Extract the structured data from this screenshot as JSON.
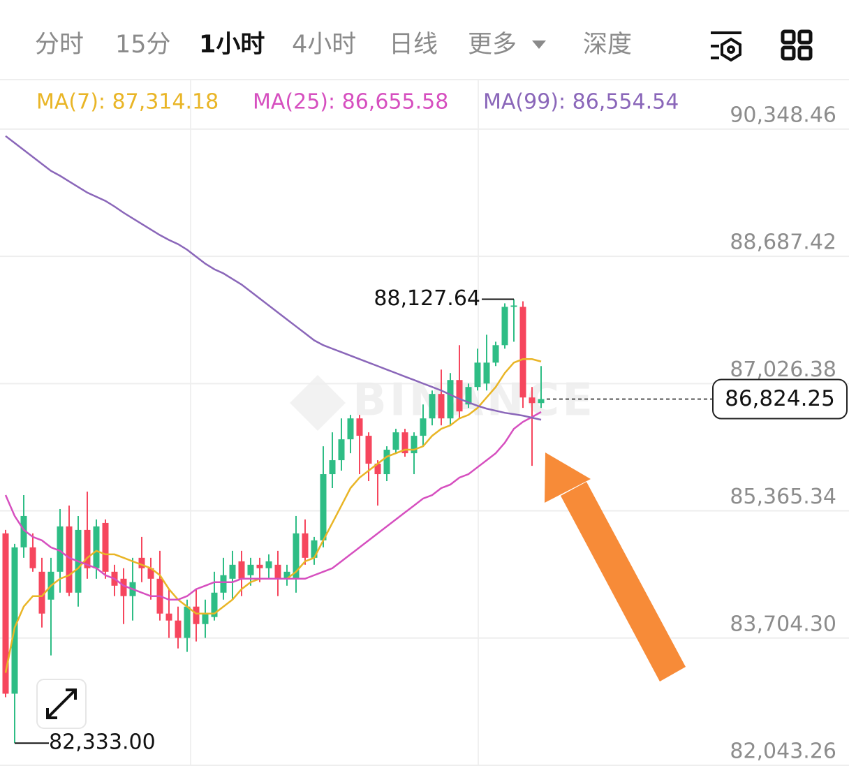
{
  "tabs": [
    "分时",
    "15分",
    "1小时",
    "4小时",
    "日线",
    "更多",
    "深度"
  ],
  "active_tab": "1小时",
  "chart_data": {
    "type": "candlestick",
    "watermark": "BINANCE",
    "up_color": "#2ebd85",
    "down_color": "#f6465d",
    "ylim": [
      82043.26,
      90985.6
    ],
    "yticks": [
      {
        "value": 90348.46,
        "label": "90,348.46"
      },
      {
        "value": 88687.42,
        "label": "88,687.42"
      },
      {
        "value": 87026.38,
        "label": "87,026.38"
      },
      {
        "value": 85365.34,
        "label": "85,365.34"
      },
      {
        "value": 83704.3,
        "label": "83,704.30"
      },
      {
        "value": 82043.26,
        "label": "82,043.26"
      }
    ],
    "grid": true,
    "open": [
      85071,
      82978,
      84888,
      84888,
      84570,
      84206,
      84570,
      85162,
      84297,
      85116,
      84616,
      85207,
      84570,
      84479,
      84252,
      84752,
      84616,
      84479,
      84024,
      83933,
      83706,
      84115,
      83887,
      83979,
      84297,
      84479,
      84706,
      84525,
      84661,
      84616,
      84661,
      84479,
      84479,
      85071,
      84752,
      84980,
      85844,
      86026,
      86299,
      86572,
      86345,
      85981,
      85844,
      86163,
      86390,
      86117,
      86345,
      86572,
      86891,
      86572,
      87073,
      86754,
      86982,
      87027,
      87300,
      87528,
      88028,
      88028,
      86845,
      86772
    ],
    "close": [
      82978,
      84888,
      85298,
      84616,
      84024,
      84570,
      85162,
      84297,
      85116,
      84616,
      85162,
      84570,
      84388,
      84252,
      84434,
      84616,
      84479,
      84024,
      83933,
      83706,
      84115,
      83887,
      84024,
      84297,
      84525,
      84661,
      84479,
      84661,
      84616,
      84706,
      84479,
      84570,
      85071,
      84752,
      84980,
      85844,
      86026,
      86299,
      86572,
      86345,
      85981,
      85844,
      86163,
      86390,
      86117,
      86345,
      86572,
      86891,
      86572,
      87073,
      86663,
      86982,
      87300,
      87300,
      87528,
      88028,
      88046,
      86845,
      86772,
      86824.25
    ],
    "high": [
      85116,
      84934,
      85571,
      85071,
      84752,
      84752,
      85389,
      85434,
      85298,
      85616,
      85253,
      85253,
      84661,
      84616,
      84752,
      85025,
      84752,
      84843,
      84343,
      84115,
      84206,
      84343,
      84206,
      84570,
      84752,
      84843,
      84843,
      84752,
      84752,
      84797,
      84843,
      84661,
      85298,
      85253,
      85025,
      86208,
      86390,
      86572,
      86618,
      86618,
      86390,
      86026,
      86208,
      86436,
      86436,
      86390,
      86754,
      86936,
      87209,
      87164,
      87528,
      87027,
      87482,
      87664,
      87573,
      88074,
      88127.64,
      88101,
      86982,
      87255
    ],
    "low": [
      82932,
      82333,
      84752,
      84570,
      83842,
      83478,
      84297,
      84252,
      84115,
      84479,
      84479,
      84479,
      84252,
      83887,
      83933,
      84434,
      84206,
      83933,
      83706,
      83569,
      83524,
      83660,
      83706,
      83933,
      84206,
      84206,
      84252,
      84388,
      84434,
      84479,
      84252,
      84388,
      84297,
      84661,
      84661,
      84888,
      85662,
      85890,
      86117,
      85844,
      85753,
      85434,
      85753,
      86117,
      86072,
      85844,
      86208,
      86481,
      86481,
      86481,
      86572,
      86709,
      86936,
      86936,
      87255,
      87482,
      87573,
      86709,
      85953,
      86709
    ],
    "series": [
      {
        "name": "MA(7): 87,314.18",
        "color": "#e9b526",
        "values": [
          83251,
          83842,
          84115,
          84252,
          84252,
          84388,
          84479,
          84525,
          84616,
          84752,
          84843,
          84797,
          84797,
          84752,
          84706,
          84661,
          84616,
          84525,
          84343,
          84206,
          84115,
          84024,
          84024,
          84024,
          84115,
          84206,
          84343,
          84434,
          84479,
          84479,
          84479,
          84479,
          84570,
          84706,
          84752,
          84980,
          85207,
          85434,
          85662,
          85799,
          85890,
          85981,
          86072,
          86117,
          86163,
          86163,
          86208,
          86345,
          86436,
          86481,
          86572,
          86618,
          86709,
          86845,
          86982,
          87164,
          87300,
          87346,
          87346,
          87314.18
        ]
      },
      {
        "name": "MA(25): 86,655.58",
        "color": "#d64fbf",
        "values": [
          85571,
          85298,
          85116,
          85025,
          84980,
          84888,
          84843,
          84752,
          84706,
          84661,
          84616,
          84525,
          84479,
          84388,
          84343,
          84297,
          84252,
          84252,
          84206,
          84206,
          84252,
          84343,
          84388,
          84434,
          84434,
          84434,
          84479,
          84479,
          84479,
          84479,
          84479,
          84479,
          84479,
          84479,
          84525,
          84570,
          84616,
          84706,
          84797,
          84888,
          84980,
          85071,
          85162,
          85253,
          85344,
          85434,
          85526,
          85571,
          85662,
          85708,
          85799,
          85844,
          85935,
          86026,
          86117,
          86254,
          86436,
          86527,
          86590,
          86655.58
        ]
      },
      {
        "name": "MA(99): 86,554.54",
        "color": "#8a66b9",
        "values": [
          90258,
          90167,
          90076,
          89985,
          89894,
          89803,
          89739,
          89666,
          89593,
          89520,
          89466,
          89411,
          89338,
          89257,
          89184,
          89111,
          89038,
          88965,
          88902,
          88847,
          88774,
          88683,
          88592,
          88519,
          88465,
          88392,
          88319,
          88228,
          88137,
          88046,
          87955,
          87864,
          87773,
          87682,
          87591,
          87528,
          87482,
          87437,
          87391,
          87346,
          87300,
          87255,
          87209,
          87164,
          87118,
          87073,
          87027,
          86982,
          86936,
          86881,
          86827,
          86781,
          86736,
          86699,
          86672,
          86645,
          86627,
          86608,
          86581,
          86554.54
        ]
      }
    ],
    "high_label": {
      "value": 88127.64,
      "label": "88,127.64"
    },
    "low_label": {
      "value": 82333,
      "label": "82,333.00"
    },
    "last_price": {
      "value": 86824.25,
      "label": "86,824.25"
    }
  }
}
